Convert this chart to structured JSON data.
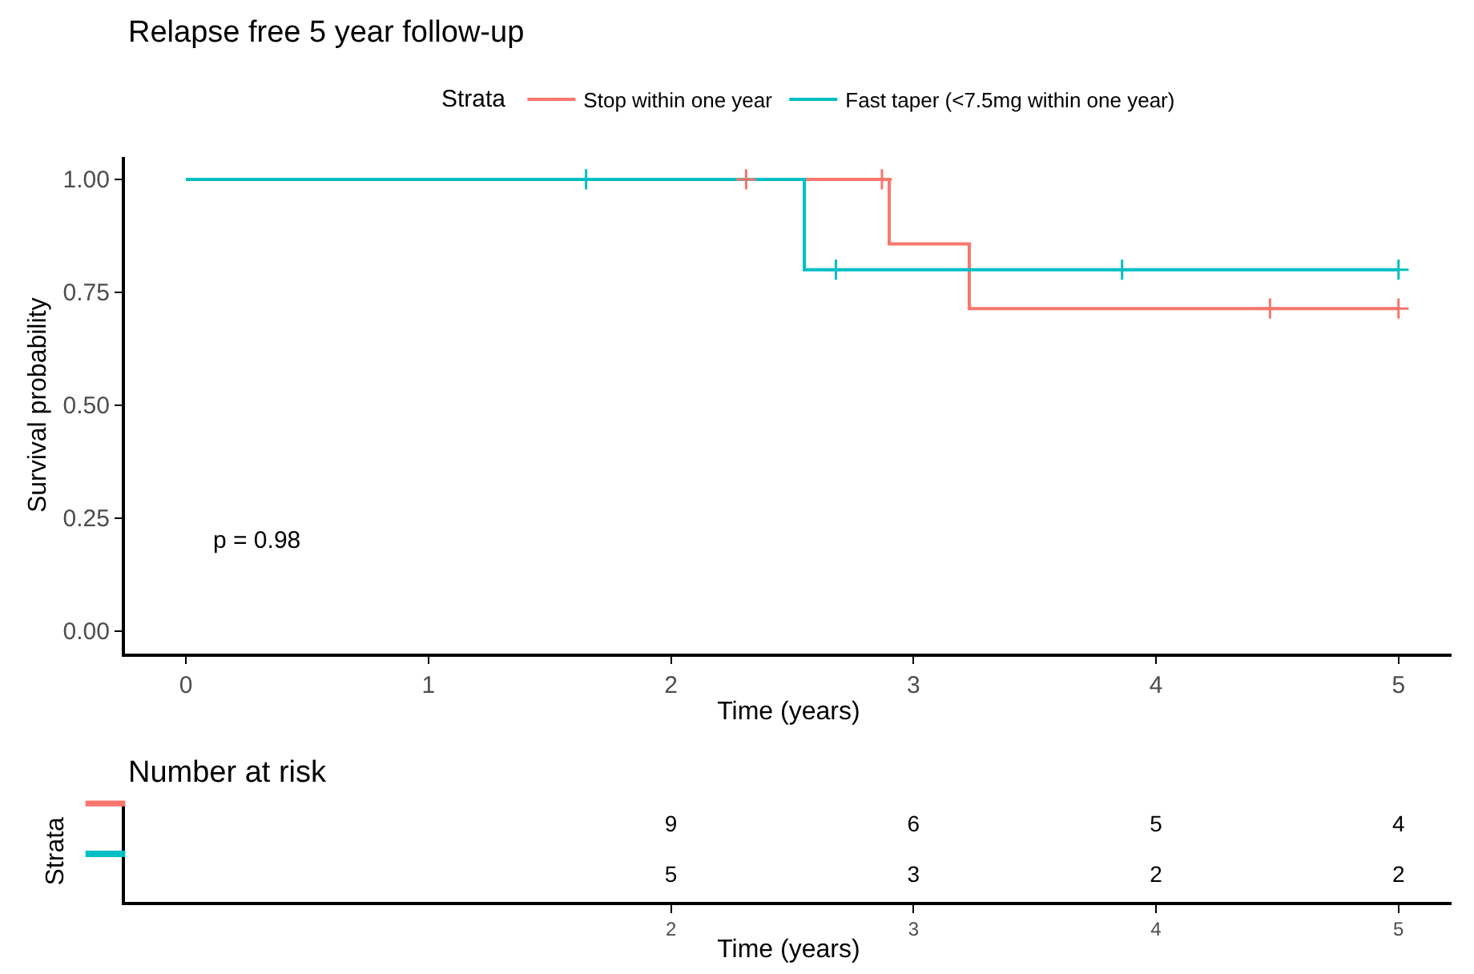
{
  "chart_data": [
    {
      "type": "step",
      "title": "Relapse free 5 year follow-up",
      "xlabel": "Time (years)",
      "ylabel": "Survival probability",
      "legend_title": "Strata",
      "legend": "top",
      "xlim": [
        -0.25,
        5.22
      ],
      "xticks": [
        0,
        1,
        2,
        3,
        4,
        5
      ],
      "ylim": [
        -0.05,
        1.05
      ],
      "yticks": [
        {
          "value": 0,
          "label": "0.00"
        },
        0.25,
        {
          "value": 0.5,
          "label": "0.50"
        },
        0.75,
        {
          "value": 1,
          "label": "1.00"
        }
      ],
      "series": [
        {
          "name": "Stop within one year",
          "color": "#f8766d",
          "x": [
            0,
            2.9,
            3.23,
            5
          ],
          "values": [
            1,
            0.857,
            0.714,
            0.714
          ]
        },
        {
          "name": "Fast taper (<7.5mg within one year)",
          "color": "#00bfc4",
          "x": [
            0,
            2.55,
            5
          ],
          "values": [
            1,
            0.8,
            0.8
          ]
        },
        {
          "type": "scatter",
          "marker": "cross",
          "color": "#f8766d",
          "x": [
            2.31,
            2.87,
            4.47,
            5
          ],
          "values": [
            1,
            1,
            0.714,
            0.714
          ]
        },
        {
          "type": "scatter",
          "marker": "cross",
          "color": "#00bfc4",
          "x": [
            1.65,
            2.68,
            3.86,
            5
          ],
          "values": [
            1,
            0.8,
            0.8,
            0.8
          ]
        }
      ],
      "annotations": [
        "p = 0.98"
      ]
    },
    {
      "type": "heatmap",
      "title": "Number at risk",
      "xlabel": "Time (years)",
      "ylabel": "Strata",
      "x": [
        2,
        3,
        4,
        5
      ],
      "xlim": [
        -0.25,
        5.22
      ],
      "xticks": [
        2,
        3,
        4,
        5
      ],
      "y_categories": [
        null,
        null
      ],
      "colors": [
        "#f8766d",
        "#00bfc4"
      ],
      "cells": [
        [
          9,
          6,
          5,
          4
        ],
        [
          5,
          3,
          2,
          2
        ]
      ],
      "data_labels": true
    }
  ]
}
